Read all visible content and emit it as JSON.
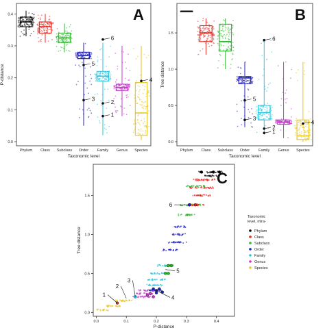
{
  "chart_data": [
    {
      "type": "box",
      "panel_label": "A",
      "xlabel": "Taxonomic level",
      "ylabel": "P-distance",
      "categories": [
        "Phylum",
        "Class",
        "Subclass",
        "Order",
        "Family",
        "Genus",
        "Species"
      ],
      "ylim": [
        0,
        0.42
      ],
      "yticks": [
        "0.0",
        "0.1",
        "0.2",
        "0.3",
        "0.4"
      ],
      "colors": [
        "#000000",
        "#e8241c",
        "#2eb82e",
        "#1f1fbf",
        "#29c7e0",
        "#c239c9",
        "#e6c51f"
      ],
      "boxes": [
        {
          "q1": 0.36,
          "median": 0.375,
          "q3": 0.39,
          "low": 0.33,
          "high": 0.41
        },
        {
          "q1": 0.34,
          "median": 0.36,
          "q3": 0.375,
          "low": 0.31,
          "high": 0.4
        },
        {
          "q1": 0.31,
          "median": 0.325,
          "q3": 0.34,
          "low": 0.28,
          "high": 0.37
        },
        {
          "q1": 0.26,
          "median": 0.27,
          "q3": 0.28,
          "low": 0.05,
          "high": 0.31
        },
        {
          "q1": 0.19,
          "median": 0.205,
          "q3": 0.22,
          "low": 0.02,
          "high": 0.31
        },
        {
          "q1": 0.16,
          "median": 0.17,
          "q3": 0.18,
          "low": 0.08,
          "high": 0.3
        },
        {
          "q1": 0.02,
          "median": 0.09,
          "q3": 0.185,
          "low": 0.005,
          "high": 0.3
        }
      ],
      "annotations": [
        {
          "label": "1",
          "category": "Family",
          "value": 0.08
        },
        {
          "label": "2",
          "category": "Family",
          "value": 0.12
        },
        {
          "label": "3",
          "category": "Order",
          "value": 0.13
        },
        {
          "label": "4",
          "category": "Species",
          "value": 0.19
        },
        {
          "label": "5",
          "category": "Order",
          "value": 0.24
        },
        {
          "label": "6",
          "category": "Family",
          "value": 0.32
        }
      ]
    },
    {
      "type": "box",
      "panel_label": "B",
      "xlabel": "Taxonomic level",
      "ylabel": "Tree distance",
      "categories": [
        "Phylum",
        "Class",
        "Subclass",
        "Order",
        "Family",
        "Genus",
        "Species"
      ],
      "ylim": [
        0,
        1.85
      ],
      "yticks": [
        "0.0",
        "0.5",
        "1.0",
        "1.5"
      ],
      "colors": [
        "#000000",
        "#e8241c",
        "#2eb82e",
        "#1f1fbf",
        "#29c7e0",
        "#c239c9",
        "#e6c51f"
      ],
      "boxes": [
        {
          "q1": 1.8,
          "median": 1.8,
          "q3": 1.8,
          "low": 1.8,
          "high": 1.8
        },
        {
          "q1": 1.38,
          "median": 1.5,
          "q3": 1.6,
          "low": 1.2,
          "high": 1.7
        },
        {
          "q1": 1.25,
          "median": 1.38,
          "q3": 1.62,
          "low": 1.0,
          "high": 1.7
        },
        {
          "q1": 0.8,
          "median": 0.88,
          "q3": 0.9,
          "low": 0.2,
          "high": 1.1
        },
        {
          "q1": 0.3,
          "median": 0.4,
          "q3": 0.5,
          "low": 0.1,
          "high": 1.4
        },
        {
          "q1": 0.24,
          "median": 0.27,
          "q3": 0.3,
          "low": 0.05,
          "high": 1.1
        },
        {
          "q1": 0.03,
          "median": 0.08,
          "q3": 0.3,
          "low": 0.0,
          "high": 1.1
        }
      ],
      "annotations": [
        {
          "label": "1",
          "category": "Family",
          "value": 0.12
        },
        {
          "label": "2",
          "category": "Family",
          "value": 0.18
        },
        {
          "label": "3",
          "category": "Order",
          "value": 0.3
        },
        {
          "label": "4",
          "category": "Species",
          "value": 0.25
        },
        {
          "label": "5",
          "category": "Order",
          "value": 0.57
        },
        {
          "label": "6",
          "category": "Family",
          "value": 1.4
        }
      ]
    },
    {
      "type": "scatter",
      "panel_label": "C",
      "xlabel": "P-distance",
      "ylabel": "Tree distance",
      "xlim": [
        -0.01,
        0.46
      ],
      "ylim": [
        -0.05,
        1.9
      ],
      "xticks": [
        "0.0",
        "0.1",
        "0.2",
        "0.3",
        "0.4"
      ],
      "yticks": [
        "0.0",
        "0.5",
        "1.0",
        "1.5"
      ],
      "legend": {
        "title": "Taxonomic\nlevel, intra-",
        "placement": "right",
        "items": [
          {
            "name": "Phylum",
            "color": "#000000"
          },
          {
            "name": "Class",
            "color": "#e8241c"
          },
          {
            "name": "Subclass",
            "color": "#2eb82e"
          },
          {
            "name": "Order",
            "color": "#1f1fbf"
          },
          {
            "name": "Family",
            "color": "#29c7e0"
          },
          {
            "name": "Genus",
            "color": "#c239c9"
          },
          {
            "name": "Species",
            "color": "#e6c51f"
          }
        ]
      },
      "bands": [
        {
          "series": "Phylum",
          "y": 1.8,
          "x": [
            0.34,
            0.42
          ]
        },
        {
          "series": "Phylum",
          "y": 1.75,
          "x": [
            0.36,
            0.41
          ]
        },
        {
          "series": "Class",
          "y": 1.7,
          "x": [
            0.32,
            0.4
          ]
        },
        {
          "series": "Class",
          "y": 1.6,
          "x": [
            0.31,
            0.39
          ]
        },
        {
          "series": "Subclass",
          "y": 1.62,
          "x": [
            0.3,
            0.36
          ]
        },
        {
          "series": "Class",
          "y": 1.5,
          "x": [
            0.32,
            0.38
          ]
        },
        {
          "series": "Subclass",
          "y": 1.38,
          "x": [
            0.28,
            0.35
          ]
        },
        {
          "series": "Class",
          "y": 1.38,
          "x": [
            0.31,
            0.36
          ]
        },
        {
          "series": "Subclass",
          "y": 1.25,
          "x": [
            0.27,
            0.33
          ]
        },
        {
          "series": "Order",
          "y": 1.1,
          "x": [
            0.26,
            0.3
          ]
        },
        {
          "series": "Order",
          "y": 1.0,
          "x": [
            0.25,
            0.3
          ]
        },
        {
          "series": "Order",
          "y": 0.9,
          "x": [
            0.24,
            0.3
          ]
        },
        {
          "series": "Order",
          "y": 0.8,
          "x": [
            0.22,
            0.27
          ]
        },
        {
          "series": "Family",
          "y": 0.6,
          "x": [
            0.2,
            0.24
          ]
        },
        {
          "series": "Subclass",
          "y": 0.6,
          "x": [
            0.23,
            0.26
          ]
        },
        {
          "series": "Family",
          "y": 0.5,
          "x": [
            0.18,
            0.24
          ]
        },
        {
          "series": "Family",
          "y": 0.42,
          "x": [
            0.17,
            0.23
          ]
        },
        {
          "series": "Family",
          "y": 0.35,
          "x": [
            0.16,
            0.22
          ]
        },
        {
          "series": "Genus",
          "y": 0.28,
          "x": [
            0.14,
            0.2
          ]
        },
        {
          "series": "Genus",
          "y": 0.24,
          "x": [
            0.13,
            0.19
          ]
        },
        {
          "series": "Genus",
          "y": 0.2,
          "x": [
            0.12,
            0.18
          ]
        },
        {
          "series": "Order",
          "y": 0.28,
          "x": [
            0.17,
            0.22
          ]
        },
        {
          "series": "Species",
          "y": 0.15,
          "x": [
            0.06,
            0.12
          ]
        },
        {
          "series": "Species",
          "y": 0.08,
          "x": [
            0.03,
            0.08
          ]
        },
        {
          "series": "Species",
          "y": 0.03,
          "x": [
            0.0,
            0.04
          ]
        }
      ],
      "highlights": [
        {
          "series": "Phylum",
          "points": [
            [
              0.35,
              1.8
            ],
            [
              0.39,
              1.8
            ],
            [
              0.41,
              1.8
            ]
          ]
        },
        {
          "series": "Class",
          "points": [
            [
              0.31,
              1.38
            ],
            [
              0.33,
              1.38
            ]
          ]
        },
        {
          "series": "Order",
          "points": [
            [
              0.31,
              1.38
            ]
          ]
        },
        {
          "series": "Subclass",
          "points": [
            [
              0.24,
              0.6
            ],
            [
              0.25,
              0.6
            ],
            [
              0.23,
              0.5
            ],
            [
              0.24,
              0.5
            ]
          ]
        },
        {
          "series": "Order",
          "points": [
            [
              0.19,
              0.3
            ],
            [
              0.2,
              0.28
            ],
            [
              0.21,
              0.3
            ],
            [
              0.22,
              0.26
            ],
            [
              0.2,
              0.25
            ]
          ]
        },
        {
          "series": "Genus",
          "points": [
            [
              0.17,
              0.22
            ],
            [
              0.18,
              0.24
            ],
            [
              0.19,
              0.2
            ]
          ]
        },
        {
          "series": "Family",
          "points": [
            [
              0.13,
              0.2
            ]
          ]
        },
        {
          "series": "Class",
          "points": [
            [
              0.07,
              0.12
            ]
          ]
        }
      ],
      "annotations": [
        {
          "label": "1",
          "x": 0.07,
          "y": 0.12
        },
        {
          "label": "2",
          "x": 0.1,
          "y": 0.18
        },
        {
          "label": "3",
          "x": 0.13,
          "y": 0.2
        },
        {
          "label": "4",
          "x": 0.2,
          "y": 0.28
        },
        {
          "label": "5",
          "x": 0.23,
          "y": 0.55
        },
        {
          "label": "6",
          "x": 0.31,
          "y": 1.38
        }
      ]
    }
  ]
}
